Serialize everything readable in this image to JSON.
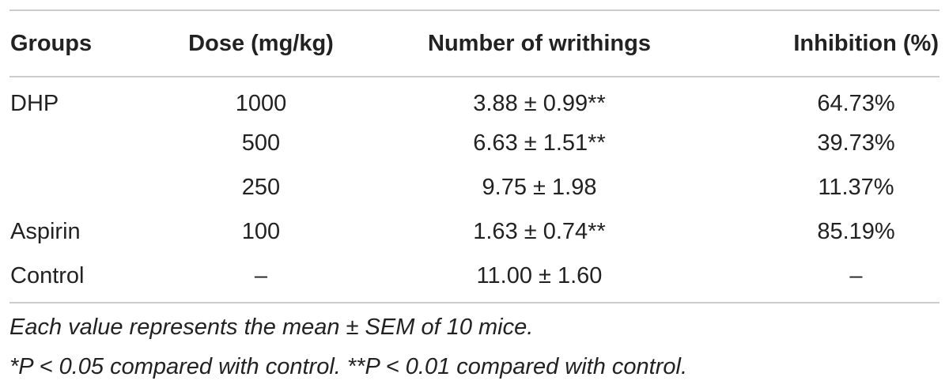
{
  "table": {
    "header": [
      "Groups",
      "Dose (mg/kg)",
      "Number of writhings",
      "Inhibition (%)"
    ],
    "rows": [
      [
        "DHP",
        "1000",
        "3.88 ± 0.99**",
        "64.73%"
      ],
      [
        "",
        "500",
        "6.63 ± 1.51**",
        "39.73%"
      ],
      [
        "",
        "250",
        "9.75 ± 1.98",
        "11.37%"
      ],
      [
        "Aspirin",
        "100",
        "1.63 ± 0.74**",
        "85.19%"
      ],
      [
        "Control",
        "–",
        "11.00 ± 1.60",
        "–"
      ]
    ]
  },
  "footnotes": [
    "Each value represents the mean ± SEM of 10 mice.",
    "*P < 0.05 compared with control. **P < 0.01 compared with control."
  ]
}
